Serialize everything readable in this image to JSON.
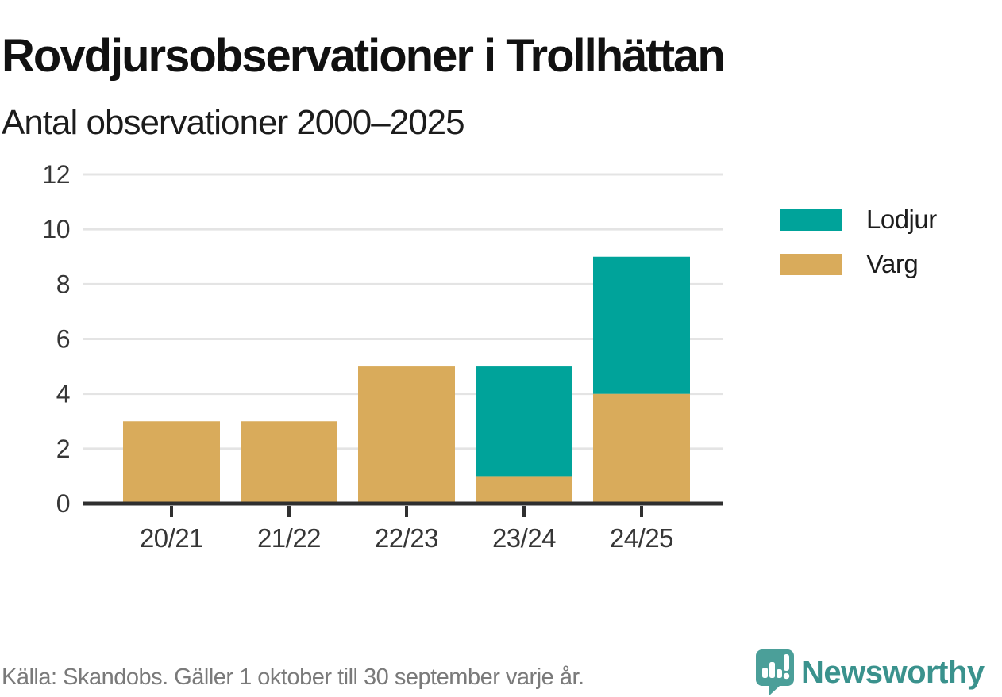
{
  "page": {
    "title": "Rovdjursobservationer i Trollhättan",
    "subtitle": "Antal observationer 2000–2025",
    "source": "Källa: Skandobs. Gäller 1 oktober till 30 september varje år.",
    "brand": "Newsworthy"
  },
  "colors": {
    "lodjur": "#00a39a",
    "varg": "#d9ab5b",
    "grid": "#e4e4e4",
    "axis": "#2f2f2f",
    "tick_label": "#363636",
    "source_text": "#7a7a7a",
    "brand_teal": "#3a928d",
    "logo_teal": "#4b9f99"
  },
  "legend": [
    {
      "label": "Lodjur",
      "color_key": "lodjur"
    },
    {
      "label": "Varg",
      "color_key": "varg"
    }
  ],
  "chart_data": {
    "type": "bar",
    "stacked": true,
    "title": "Rovdjursobservationer i Trollhättan",
    "subtitle": "Antal observationer 2000–2025",
    "categories": [
      "20/21",
      "21/22",
      "22/23",
      "23/24",
      "24/25"
    ],
    "series": [
      {
        "name": "Varg",
        "values": [
          3,
          3,
          5,
          1,
          4
        ],
        "color": "#d9ab5b"
      },
      {
        "name": "Lodjur",
        "values": [
          0,
          0,
          0,
          4,
          5
        ],
        "color": "#00a39a"
      }
    ],
    "totals": [
      3,
      3,
      5,
      5,
      9
    ],
    "xlabel": "",
    "ylabel": "",
    "ylim": [
      0,
      12
    ],
    "yticks": [
      0,
      2,
      4,
      6,
      8,
      10,
      12
    ],
    "grid": "horizontal",
    "legend_position": "right"
  }
}
